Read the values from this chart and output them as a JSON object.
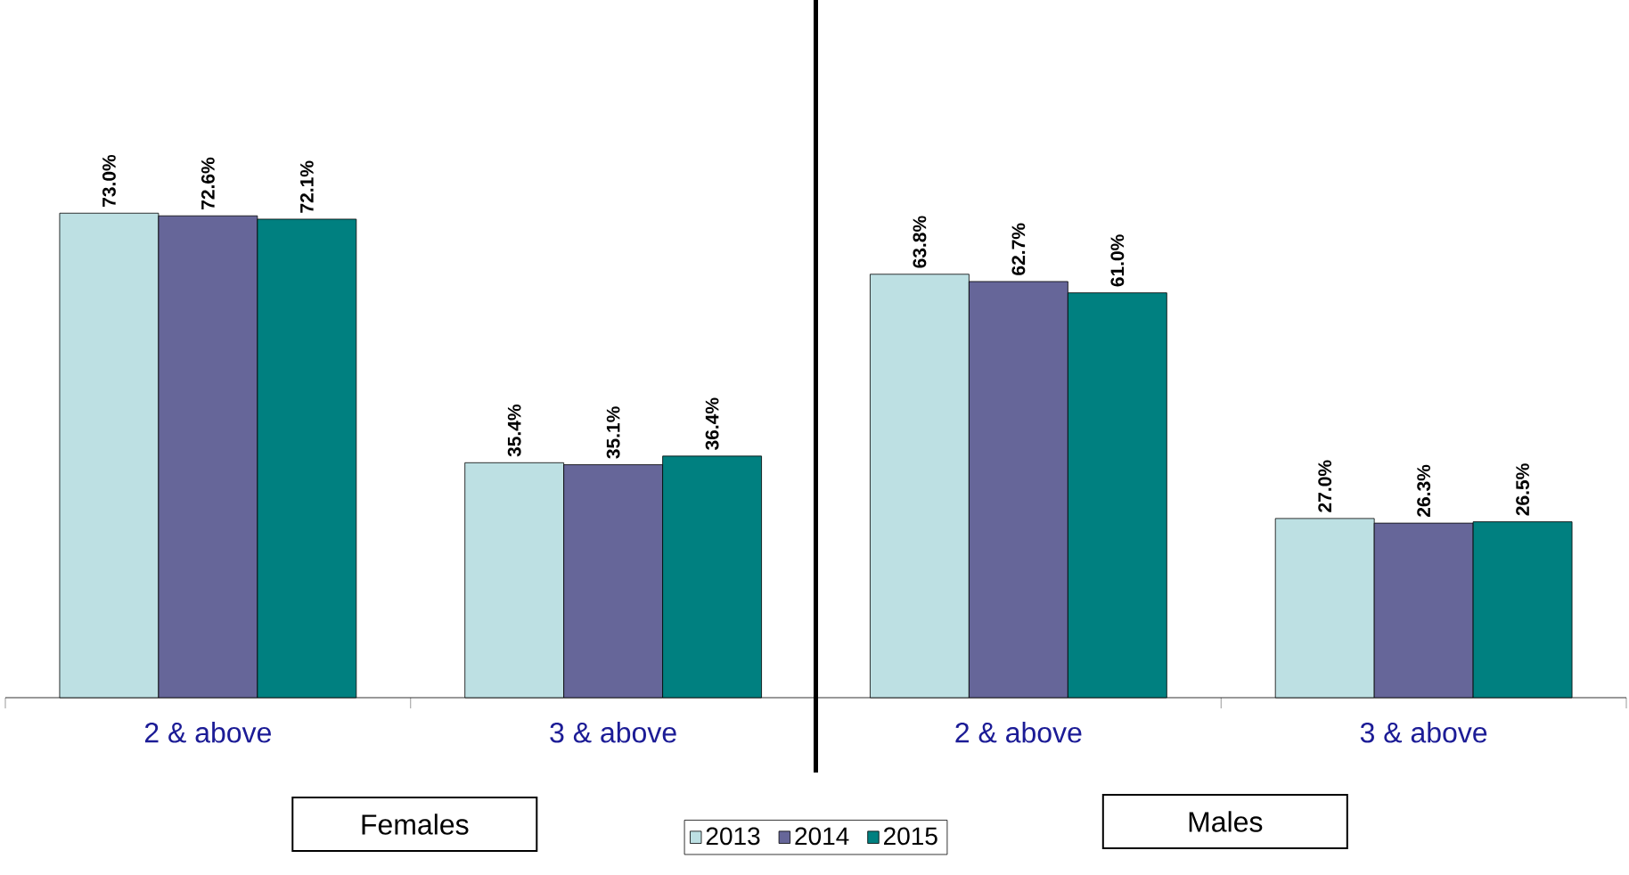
{
  "chart_data": {
    "type": "bar",
    "categories": [
      "2 & above",
      "3 & above",
      "2 & above",
      "3 & above"
    ],
    "series": [
      {
        "name": "2013",
        "color": "#bde0e3",
        "values": [
          73.0,
          35.4,
          63.8,
          27.0
        ],
        "value_labels": [
          "73.0%",
          "35.4%",
          "63.8%",
          "27.0%"
        ]
      },
      {
        "name": "2014",
        "color": "#666699",
        "values": [
          72.6,
          35.1,
          62.7,
          26.3
        ],
        "value_labels": [
          "72.6%",
          "35.1%",
          "62.7%",
          "26.3%"
        ]
      },
      {
        "name": "2015",
        "color": "#008080",
        "values": [
          72.1,
          36.4,
          61.0,
          26.5
        ],
        "value_labels": [
          "72.1%",
          "36.4%",
          "61.0%",
          "26.5%"
        ]
      }
    ],
    "annotations": [
      "Females",
      "Males"
    ],
    "legend": "bottom"
  }
}
